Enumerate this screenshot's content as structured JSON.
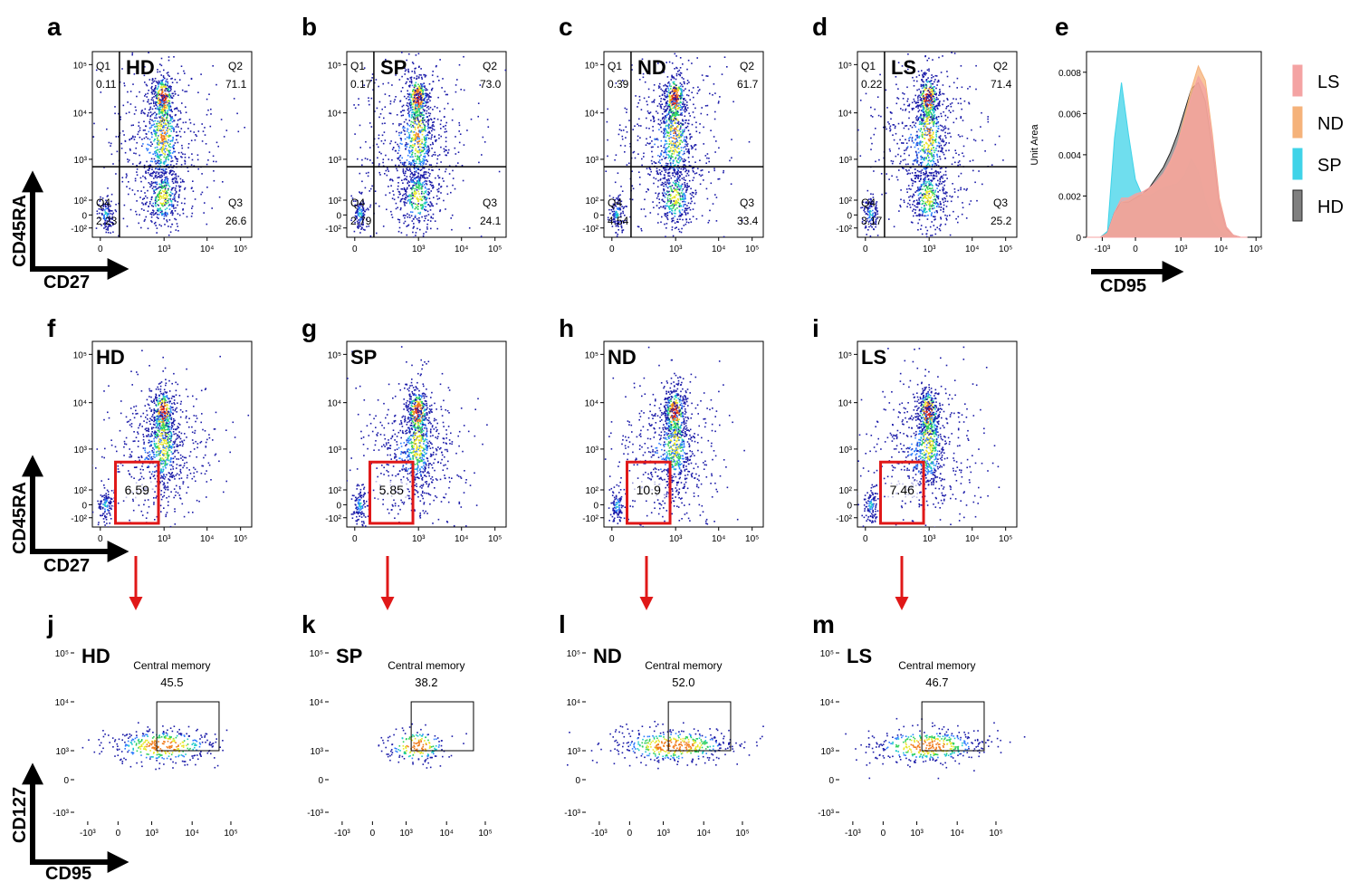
{
  "figure": {
    "row1_axes": {
      "y": "CD45RA",
      "x": "CD27"
    },
    "row2_axes": {
      "y": "CD45RA",
      "x": "CD27"
    },
    "row3_axes": {
      "y": "CD127",
      "x": "CD95"
    }
  },
  "colors": {
    "density": [
      "#1a1aa8",
      "#2b7bff",
      "#19c8c8",
      "#2fd05a",
      "#e8e626",
      "#f07a1a",
      "#d8261a"
    ],
    "gate_red": "#e01818",
    "arrow_red": "#e01818",
    "hist_LS": "#f4a3a3",
    "hist_ND": "#f5b27a",
    "hist_SP": "#3fd3e8",
    "hist_HD": "#808080"
  },
  "chart_data": [
    {
      "id": "a",
      "type": "scatter",
      "subtype": "density-quadrant",
      "label": "HD",
      "x_ticks": [
        "0",
        "10³",
        "10⁴",
        "10⁵"
      ],
      "y_ticks": [
        "10⁵",
        "10⁴",
        "10³",
        "10²",
        "0",
        "-10²"
      ],
      "quadrants": [
        {
          "name": "Q1",
          "value": "0.11"
        },
        {
          "name": "Q2",
          "value": "71.1"
        },
        {
          "name": "Q3",
          "value": "26.6"
        },
        {
          "name": "Q4",
          "value": "2.23"
        }
      ]
    },
    {
      "id": "b",
      "type": "scatter",
      "subtype": "density-quadrant",
      "label": "SP",
      "x_ticks": [
        "0",
        "10³",
        "10⁴",
        "10⁵"
      ],
      "y_ticks": [
        "10⁵",
        "10⁴",
        "10³",
        "10²",
        "0",
        "-10²"
      ],
      "quadrants": [
        {
          "name": "Q1",
          "value": "0.17"
        },
        {
          "name": "Q2",
          "value": "73.0"
        },
        {
          "name": "Q3",
          "value": "24.1"
        },
        {
          "name": "Q4",
          "value": "2.79"
        }
      ]
    },
    {
      "id": "c",
      "type": "scatter",
      "subtype": "density-quadrant",
      "label": "ND",
      "x_ticks": [
        "0",
        "10³",
        "10⁴",
        "10⁵"
      ],
      "y_ticks": [
        "10⁵",
        "10⁴",
        "10³",
        "10²",
        "0",
        "-10²"
      ],
      "quadrants": [
        {
          "name": "Q1",
          "value": "0.39"
        },
        {
          "name": "Q2",
          "value": "61.7"
        },
        {
          "name": "Q3",
          "value": "33.4"
        },
        {
          "name": "Q4",
          "value": "4.54"
        }
      ]
    },
    {
      "id": "d",
      "type": "scatter",
      "subtype": "density-quadrant",
      "label": "LS",
      "x_ticks": [
        "0",
        "10³",
        "10⁴",
        "10⁵"
      ],
      "y_ticks": [
        "10⁵",
        "10⁴",
        "10³",
        "10²",
        "0",
        "-10²"
      ],
      "quadrants": [
        {
          "name": "Q1",
          "value": "0.22"
        },
        {
          "name": "Q2",
          "value": "71.4"
        },
        {
          "name": "Q3",
          "value": "25.2"
        },
        {
          "name": "Q4",
          "value": "3.17"
        }
      ]
    },
    {
      "id": "e",
      "type": "area",
      "subtype": "histogram-overlay",
      "ylabel": "Unit Area",
      "xlabel": "CD95",
      "y_ticks": [
        "0.008",
        "0.006",
        "0.004",
        "0.002",
        "0"
      ],
      "x_ticks": [
        "-10³",
        "0",
        "10³",
        "10⁴",
        "10⁵"
      ],
      "ylim": [
        0,
        0.009
      ],
      "x_positions": [
        -1,
        -0.8,
        -0.6,
        -0.4,
        -0.2,
        0,
        0.2,
        0.4,
        0.6,
        0.8,
        1.0,
        1.2,
        1.4,
        1.6,
        1.8,
        2.0,
        2.2,
        2.4,
        2.6,
        2.8,
        3.0,
        3.2,
        3.4,
        3.6
      ],
      "series": [
        {
          "name": "LS",
          "values": [
            0,
            0,
            0,
            0.0002,
            0.0012,
            0.0019,
            0.0019,
            0.0021,
            0.0022,
            0.0024,
            0.0027,
            0.0031,
            0.0037,
            0.0045,
            0.0056,
            0.0068,
            0.0078,
            0.0072,
            0.0048,
            0.0018,
            0.0005,
            0.0001,
            0,
            0
          ]
        },
        {
          "name": "ND",
          "values": [
            0,
            0,
            0,
            0.0002,
            0.0011,
            0.0017,
            0.0018,
            0.002,
            0.0021,
            0.0023,
            0.0026,
            0.003,
            0.0036,
            0.0045,
            0.0058,
            0.0072,
            0.0083,
            0.0076,
            0.005,
            0.0019,
            0.0005,
            0.0001,
            0,
            0
          ]
        },
        {
          "name": "SP",
          "values": [
            0,
            0,
            0,
            0.0003,
            0.0048,
            0.0075,
            0.005,
            0.0028,
            0.002,
            0.002,
            0.0022,
            0.0024,
            0.0025,
            0.0026,
            0.003,
            0.0038,
            0.0032,
            0.0018,
            0.0008,
            0.0003,
            0.0001,
            0,
            0,
            0
          ]
        },
        {
          "name": "HD",
          "values": [
            0,
            0,
            0,
            0.0002,
            0.0012,
            0.0017,
            0.0017,
            0.0019,
            0.0021,
            0.0024,
            0.0029,
            0.0034,
            0.0041,
            0.005,
            0.0061,
            0.0072,
            0.0075,
            0.0066,
            0.0043,
            0.0016,
            0.0004,
            0.0001,
            0,
            0
          ]
        }
      ],
      "legend": [
        "LS",
        "ND",
        "SP",
        "HD"
      ]
    },
    {
      "id": "f",
      "type": "scatter",
      "subtype": "density-gate",
      "label": "HD",
      "gate_value": "6.59",
      "x_ticks": [
        "0",
        "10³",
        "10⁴",
        "10⁵"
      ],
      "y_ticks": [
        "10⁵",
        "10⁴",
        "10³",
        "10²",
        "0",
        "-10²"
      ]
    },
    {
      "id": "g",
      "type": "scatter",
      "subtype": "density-gate",
      "label": "SP",
      "gate_value": "5.85",
      "x_ticks": [
        "0",
        "10³",
        "10⁴",
        "10⁵"
      ],
      "y_ticks": [
        "10⁵",
        "10⁴",
        "10³",
        "10²",
        "0",
        "-10²"
      ]
    },
    {
      "id": "h",
      "type": "scatter",
      "subtype": "density-gate",
      "label": "ND",
      "gate_value": "10.9",
      "x_ticks": [
        "0",
        "10³",
        "10⁴",
        "10⁵"
      ],
      "y_ticks": [
        "10⁵",
        "10⁴",
        "10³",
        "10²",
        "0",
        "-10²"
      ]
    },
    {
      "id": "i",
      "type": "scatter",
      "subtype": "density-gate",
      "label": "LS",
      "gate_value": "7.46",
      "x_ticks": [
        "0",
        "10³",
        "10⁴",
        "10⁵"
      ],
      "y_ticks": [
        "10⁵",
        "10⁴",
        "10³",
        "10²",
        "0",
        "-10²"
      ]
    },
    {
      "id": "j",
      "type": "scatter",
      "subtype": "density-gate",
      "label": "HD",
      "gate_name": "Central memory",
      "gate_value": "45.5",
      "x_ticks": [
        "-10³",
        "0",
        "10³",
        "10⁴",
        "10⁵"
      ],
      "y_ticks": [
        "10⁵",
        "10⁴",
        "10³",
        "0",
        "-10³"
      ]
    },
    {
      "id": "k",
      "type": "scatter",
      "subtype": "density-gate",
      "label": "SP",
      "gate_name": "Central memory",
      "gate_value": "38.2",
      "x_ticks": [
        "-10³",
        "0",
        "10³",
        "10⁴",
        "10⁵"
      ],
      "y_ticks": [
        "10⁵",
        "10⁴",
        "10³",
        "0",
        "-10³"
      ]
    },
    {
      "id": "l",
      "type": "scatter",
      "subtype": "density-gate",
      "label": "ND",
      "gate_name": "Central memory",
      "gate_value": "52.0",
      "x_ticks": [
        "-10³",
        "0",
        "10³",
        "10⁴",
        "10⁵"
      ],
      "y_ticks": [
        "10⁵",
        "10⁴",
        "10³",
        "0",
        "-10³"
      ]
    },
    {
      "id": "m",
      "type": "scatter",
      "subtype": "density-gate",
      "label": "LS",
      "gate_name": "Central memory",
      "gate_value": "46.7",
      "x_ticks": [
        "-10³",
        "0",
        "10³",
        "10⁴",
        "10⁵"
      ],
      "y_ticks": [
        "10⁵",
        "10⁴",
        "10³",
        "0",
        "-10³"
      ]
    }
  ]
}
